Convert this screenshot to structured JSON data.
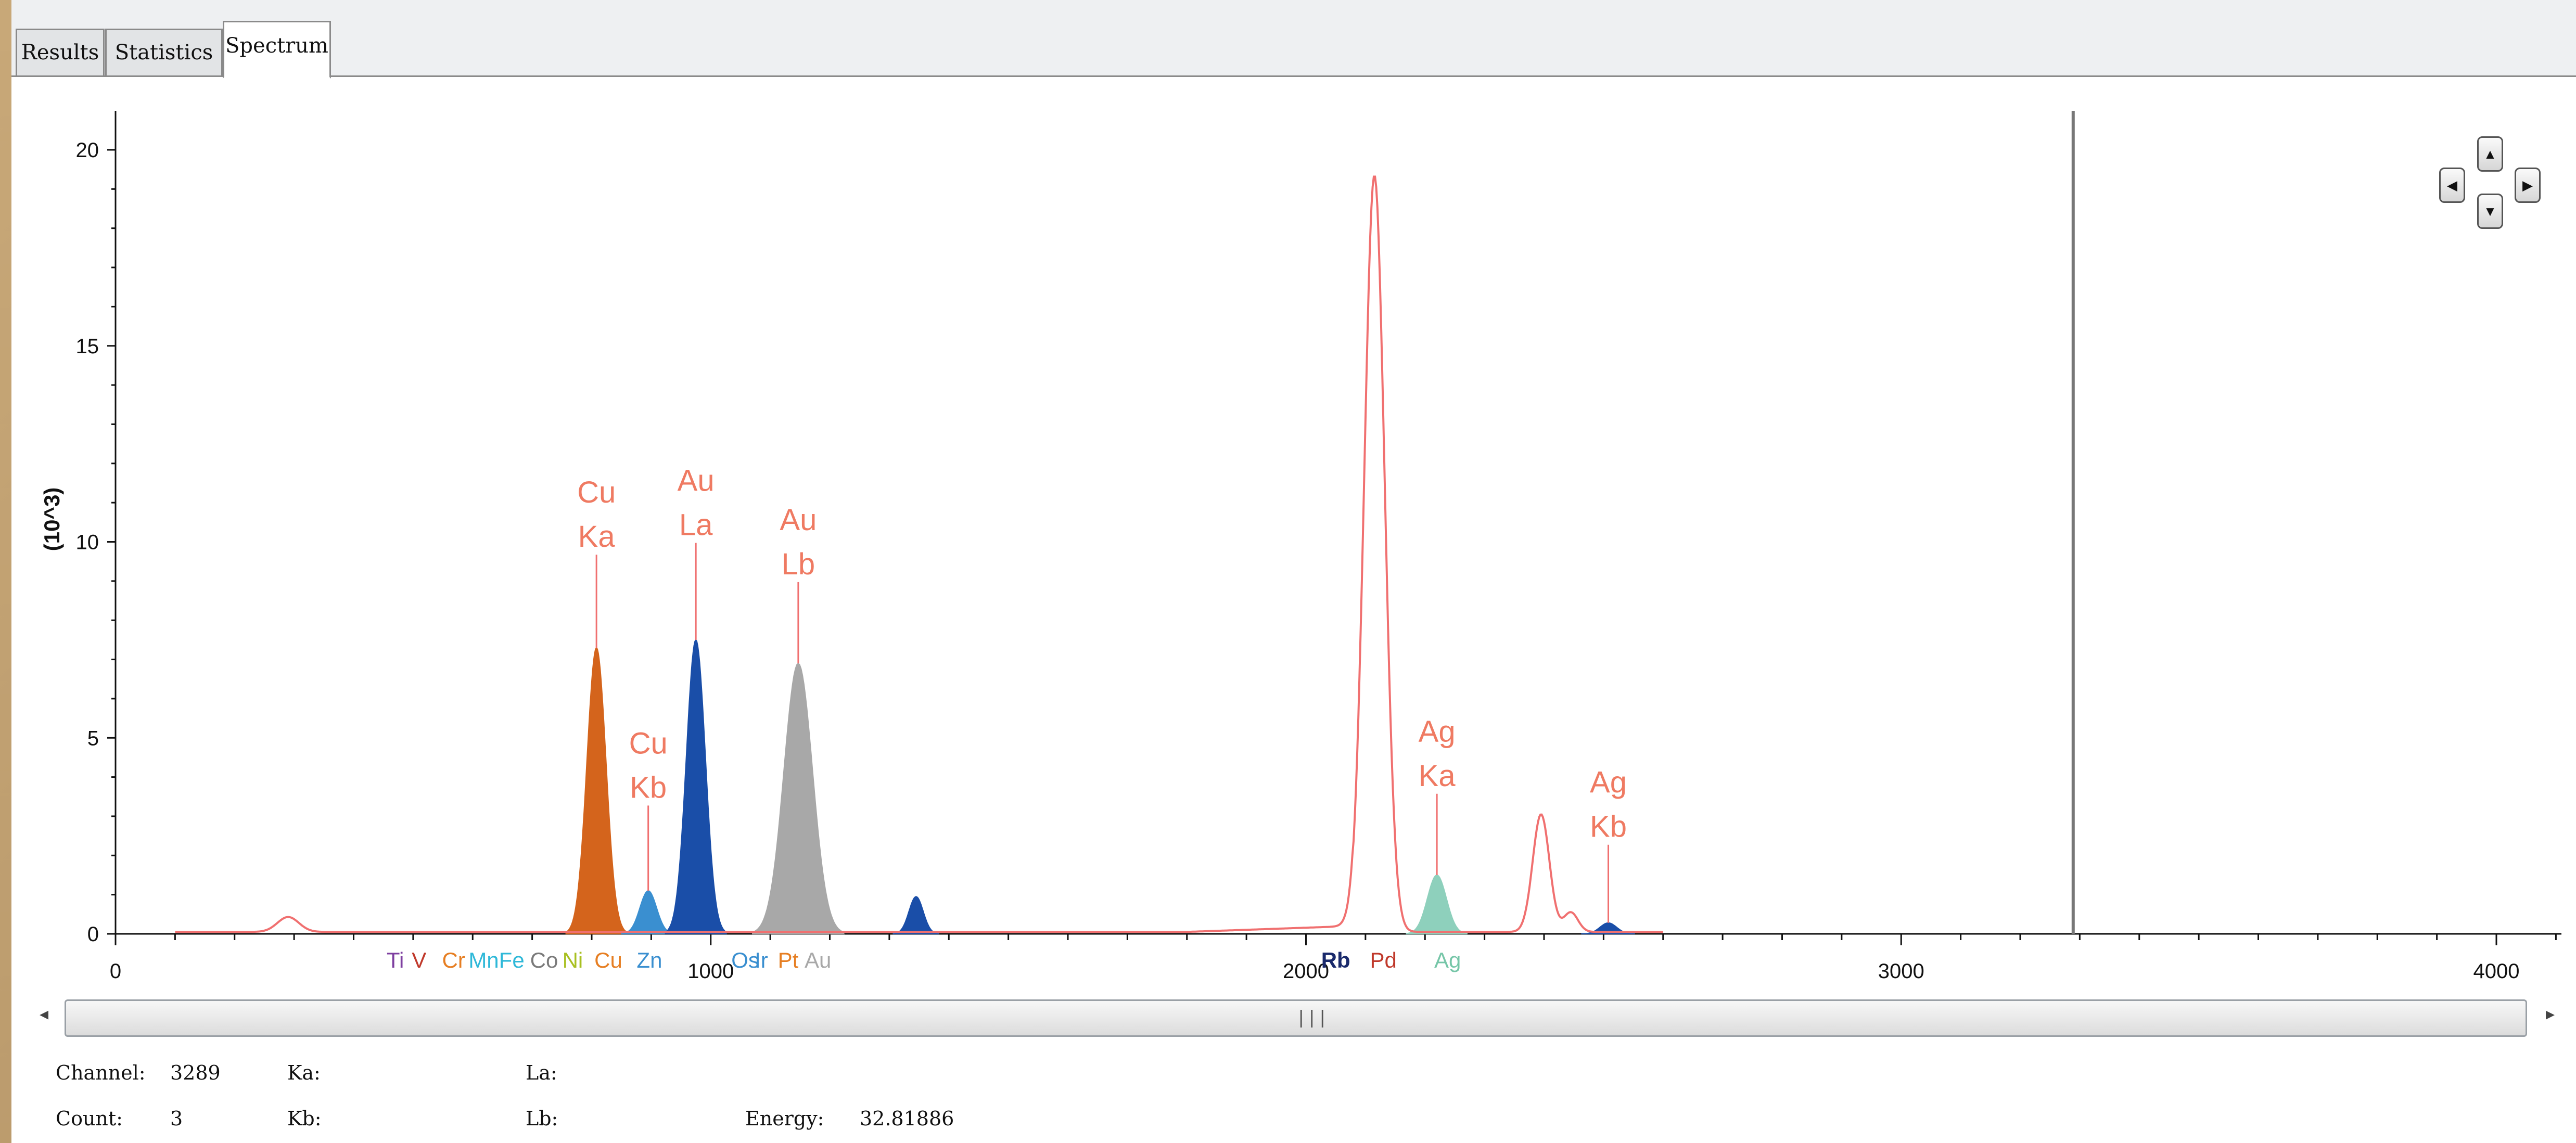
{
  "tabs": [
    {
      "label": "Results",
      "active": false
    },
    {
      "label": "Statistics",
      "active": false
    },
    {
      "label": "Spectrum",
      "active": true
    }
  ],
  "chart_data": {
    "type": "area",
    "ylabel": "(10^3)",
    "xlim": [
      0,
      4100
    ],
    "ylim": [
      0,
      21
    ],
    "x_ticks": [
      "0",
      "1000",
      "2000",
      "3000",
      "4000"
    ],
    "y_ticks": [
      "0",
      "5",
      "10",
      "15",
      "20"
    ],
    "cursor_channel": 3289,
    "peaks": [
      {
        "name": "Cu Ka",
        "x": 808,
        "y": 7.3,
        "color": "#d4641c",
        "width": 16
      },
      {
        "name": "Cu Kb",
        "x": 895,
        "y": 1.1,
        "color": "#3a8fd0",
        "width": 14
      },
      {
        "name": "Au La",
        "x": 975,
        "y": 7.5,
        "color": "#1a4ea8",
        "width": 16
      },
      {
        "name": "Au Lb",
        "x": 1147,
        "y": 6.9,
        "color": "#a8a8a8",
        "width": 24
      },
      {
        "name": "peak",
        "x": 1345,
        "y": 0.95,
        "color": "#1a4ea8",
        "width": 12
      },
      {
        "name": "Ag Ka",
        "x": 2220,
        "y": 1.5,
        "color": "#8ed0bc",
        "width": 16
      },
      {
        "name": "Ag Kb",
        "x": 2508,
        "y": 0.28,
        "color": "#1a4ea8",
        "width": 14
      }
    ],
    "line_series": {
      "name": "Pd",
      "color": "#f07070",
      "peaks": [
        {
          "x": 290,
          "y": 0.38,
          "width": 18
        },
        {
          "x": 2115,
          "y": 19.3,
          "width": 17
        },
        {
          "x": 2395,
          "y": 3.0,
          "width": 14
        },
        {
          "x": 2445,
          "y": 0.5,
          "width": 12
        }
      ]
    },
    "peak_labels": [
      {
        "line1": "Cu",
        "line2": "Ka",
        "x": 808,
        "y_top": 11.0,
        "y_stem": 7.3
      },
      {
        "line1": "Cu",
        "line2": "Kb",
        "x": 895,
        "y_top": 4.6,
        "y_stem": 1.1
      },
      {
        "line1": "Au",
        "line2": "La",
        "x": 975,
        "y_top": 11.3,
        "y_stem": 7.5
      },
      {
        "line1": "Au",
        "line2": "Lb",
        "x": 1147,
        "y_top": 10.3,
        "y_stem": 6.9
      },
      {
        "line1": "Ag",
        "line2": "Ka",
        "x": 2220,
        "y_top": 4.9,
        "y_stem": 1.5
      },
      {
        "line1": "Ag",
        "line2": "Kb",
        "x": 2508,
        "y_top": 3.6,
        "y_stem": 0.28
      }
    ],
    "element_markers": [
      {
        "label": "Ti",
        "x": 470,
        "color": "#7e3fa0",
        "bold": false
      },
      {
        "label": "V",
        "x": 510,
        "color": "#c0392b",
        "bold": false
      },
      {
        "label": "Cr",
        "x": 568,
        "color": "#e67e22",
        "bold": false
      },
      {
        "label": "MnFe",
        "x": 640,
        "color": "#2eb8d8",
        "bold": false
      },
      {
        "label": "Co",
        "x": 720,
        "color": "#7a7a7a",
        "bold": false
      },
      {
        "label": "Ni",
        "x": 768,
        "color": "#a8c020",
        "bold": false
      },
      {
        "label": "Cu",
        "x": 828,
        "color": "#e67e22",
        "bold": false
      },
      {
        "label": "Zn",
        "x": 897,
        "color": "#3a8fd0",
        "bold": false
      },
      {
        "label": "Os",
        "x": 1058,
        "color": "#3a8fd0",
        "bold": false
      },
      {
        "label": "Ir",
        "x": 1085,
        "color": "#3a8fd0",
        "bold": false
      },
      {
        "label": "Pt",
        "x": 1130,
        "color": "#e67e22",
        "bold": false
      },
      {
        "label": "Au",
        "x": 1180,
        "color": "#a8a8a8",
        "bold": false
      },
      {
        "label": "Rb",
        "x": 2050,
        "color": "#1a2a6c",
        "bold": true
      },
      {
        "label": "Pd",
        "x": 2130,
        "color": "#c0392b",
        "bold": false
      },
      {
        "label": "Ag",
        "x": 2238,
        "color": "#76c6a8",
        "bold": false
      }
    ]
  },
  "info": {
    "channel_label": "Channel:",
    "channel_value": "3289",
    "count_label": "Count:",
    "count_value": "3",
    "ka_label": "Ka:",
    "kb_label": "Kb:",
    "la_label": "La:",
    "lb_label": "Lb:",
    "energy_label": "Energy:",
    "energy_value": "32.81886"
  },
  "navigation": {
    "up": "▲",
    "down": "▼",
    "left": "◀",
    "right": "▶"
  }
}
